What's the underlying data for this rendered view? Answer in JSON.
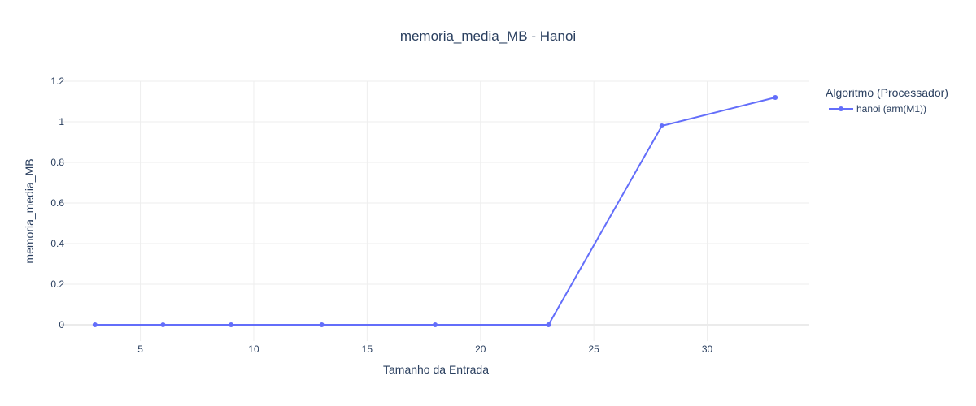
{
  "chart_data": {
    "type": "line",
    "title": "memoria_media_MB - Hanoi",
    "xlabel": "Tamanho da Entrada",
    "ylabel": "memoria_media_MB",
    "xlim": [
      1.5,
      34.5
    ],
    "ylim": [
      -0.08,
      1.2
    ],
    "x_ticks": [
      5,
      10,
      15,
      20,
      25,
      30
    ],
    "y_ticks": [
      0,
      0.2,
      0.4,
      0.6,
      0.8,
      1,
      1.2
    ],
    "grid": true,
    "legend": {
      "title": "Algoritmo (Processador)",
      "placement": "top-right"
    },
    "series": [
      {
        "name": "hanoi (arm(M1))",
        "color": "#636efa",
        "x": [
          3,
          6,
          9,
          13,
          18,
          23,
          28,
          33
        ],
        "y": [
          0,
          0,
          0,
          0,
          0,
          0,
          0.98,
          1.12
        ]
      }
    ]
  }
}
